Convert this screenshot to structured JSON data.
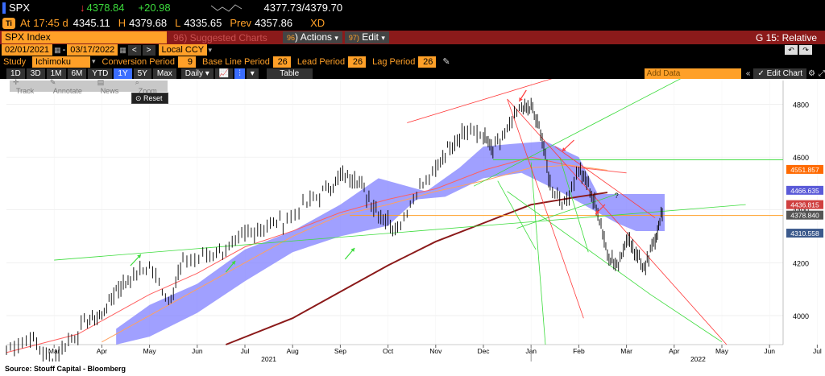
{
  "header": {
    "ticker": "SPX",
    "last": "4378.84",
    "change": "+20.98",
    "hl": "4377.73/4379.70",
    "at_label": "At",
    "time": "17:45 d",
    "open_value": "4345.11",
    "high_label": "H",
    "high_value": "4379.68",
    "low_label": "L",
    "low_value": "4335.65",
    "prev_label": "Prev",
    "prev_value": "4357.86",
    "xd": "XD",
    "ti_icon": "Ti"
  },
  "menubar": {
    "index_name": "SPX Index",
    "suggested": "96) Suggested Charts",
    "actions": "Actions",
    "actions_num": "96",
    "edit": "Edit",
    "edit_num": "97)",
    "g_title": "G 15: Relative"
  },
  "range": {
    "start": "02/01/2021",
    "end": "03/17/2022",
    "currency": "Local CCY"
  },
  "study": {
    "label": "Study",
    "name": "Ichimoku",
    "conv_label": "Conversion Period",
    "conv": "9",
    "base_label": "Base Line Period",
    "base": "26",
    "lead_label": "Lead Period",
    "lead": "26",
    "lag_label": "Lag Period",
    "lag": "26"
  },
  "periods": {
    "items": [
      "1D",
      "3D",
      "1M",
      "6M",
      "YTD",
      "1Y",
      "5Y",
      "Max"
    ],
    "selected": "1Y",
    "freq": "Daily",
    "table": "Table",
    "add_data": "Add Data",
    "edit_chart": "Edit Chart"
  },
  "toolbar": {
    "track": "Track",
    "annotate": "Annotate",
    "news": "News",
    "zoom": "Zoom",
    "reset": "Reset"
  },
  "source": "Source: Stouff Capital - Bloomberg",
  "colors": {
    "price": "#ffffff",
    "cloud": "#8080ff",
    "ma200": "#8b1a1a",
    "ma100": "#ff6060",
    "ma50": "#ffa060",
    "green_line": "#3cdc3c",
    "red_line": "#ff3c3c"
  },
  "chart_data": {
    "type": "line",
    "title": "",
    "x_ticks": [
      "Mar",
      "Apr",
      "May",
      "Jun",
      "Jul",
      "Aug",
      "Sep",
      "Oct",
      "Nov",
      "Dec",
      "Jan",
      "Feb",
      "Mar",
      "Apr",
      "May",
      "Jun",
      "Jul"
    ],
    "year_labels": [
      "2021",
      "2022"
    ],
    "y_ticks": [
      4000,
      4200,
      4400,
      4600,
      4800
    ],
    "ylim": [
      3890,
      4890
    ],
    "price_labels": [
      {
        "value": 4551.857,
        "text": "4551.857",
        "color": "#ff6a00"
      },
      {
        "value": 4466.635,
        "text": "4466.635",
        "color": "#5a5ad8"
      },
      {
        "value": 4436.815,
        "text": "4436.815",
        "color": "#d04040"
      },
      {
        "value": 4378.84,
        "text": "4378.840",
        "color": "#555555"
      },
      {
        "value": 4310.558,
        "text": "4310.558",
        "color": "#3c5a8c"
      }
    ],
    "horizontal_lines": [
      {
        "value": 4590,
        "color": "#3cdc3c"
      },
      {
        "value": 4378.84,
        "color": "#ffa028"
      }
    ],
    "series": [
      {
        "name": "SPX",
        "months": [
          "Feb",
          "Mar",
          "Apr",
          "May",
          "Jun",
          "Jul",
          "Aug",
          "Sep",
          "Oct",
          "Nov",
          "Dec",
          "Jan",
          "Feb",
          "Mar"
        ],
        "x": [
          0,
          1,
          2,
          3,
          4,
          5,
          6,
          7,
          8,
          9,
          10,
          11,
          12,
          13
        ],
        "values": [
          3900,
          3960,
          4130,
          4200,
          4260,
          4380,
          4520,
          4450,
          4330,
          4700,
          4800,
          4480,
          4220,
          4378.84
        ]
      }
    ]
  }
}
